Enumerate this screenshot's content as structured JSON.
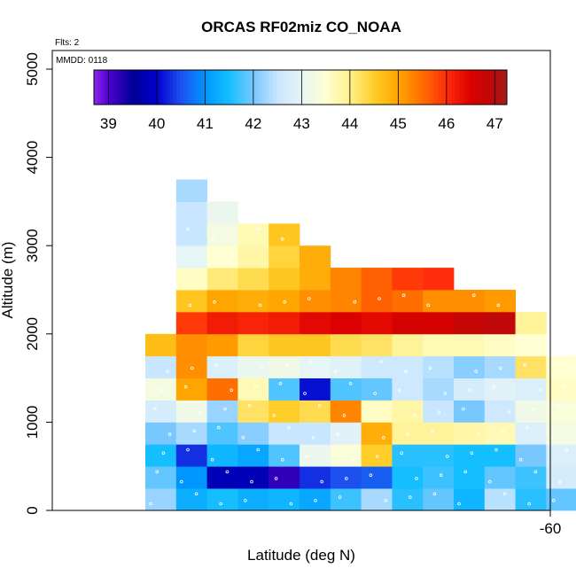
{
  "chart_data": {
    "type": "heatmap",
    "title": "ORCAS RF02miz CO_NOAA",
    "flights_label": "Flts: 2",
    "date_label": "MMDD: 0118",
    "xlabel": "Latitude (deg N)",
    "ylabel": "Altitude (m)",
    "x_tick_labels": [
      "-60"
    ],
    "y_ticks": [
      0,
      1000,
      2000,
      3000,
      4000,
      5000
    ],
    "y_tick_labels": [
      "0",
      "1000",
      "2000",
      "3000",
      "4000",
      "5000"
    ],
    "ylim": [
      0,
      5000
    ],
    "colorbar": {
      "range": [
        38.7,
        47.25
      ],
      "ticks": [
        39,
        40,
        41,
        42,
        43,
        44,
        45,
        46,
        47
      ],
      "tick_labels": [
        "39",
        "40",
        "41",
        "42",
        "43",
        "44",
        "45",
        "46",
        "47"
      ],
      "boundaries": [
        38.7,
        39,
        40,
        41,
        42,
        43,
        44,
        45,
        46,
        47,
        47.25
      ]
    },
    "cell_altitude_bin_m": 250,
    "columns": [
      {
        "altitudes_m": [
          0,
          250,
          500,
          750,
          1000,
          1250,
          1500,
          1750
        ],
        "values": [
          42.2,
          41.9,
          41.5,
          42.0,
          42.7,
          43.3,
          42.5,
          44.7
        ]
      },
      {
        "altitudes_m": [
          0,
          250,
          500,
          750,
          1000,
          1250,
          1500,
          1750,
          2000,
          2250,
          2500,
          2750,
          3000,
          3250,
          3500
        ],
        "values": [
          41.3,
          41.0,
          40.3,
          42.3,
          43.2,
          45.0,
          45.2,
          45.2,
          45.9,
          44.6,
          43.6,
          43.0,
          42.5,
          42.5,
          42.3
        ]
      },
      {
        "altitudes_m": [
          0,
          250,
          500,
          750,
          1000,
          1250,
          1500,
          1750,
          2000,
          2250,
          2500,
          2750,
          3000,
          3250
        ],
        "values": [
          41.5,
          39.8,
          41.4,
          41.8,
          42.2,
          45.5,
          42.8,
          45.1,
          46.2,
          45.0,
          44.1,
          43.5,
          43.3,
          43.1
        ]
      },
      {
        "altitudes_m": [
          0,
          250,
          500,
          750,
          1000,
          1250,
          1500,
          1750,
          2000,
          2250,
          2500,
          2750,
          3000
        ],
        "values": [
          41.3,
          39.8,
          41.2,
          42.1,
          44.2,
          43.7,
          43.1,
          44.4,
          46.1,
          44.9,
          44.3,
          43.8,
          43.7
        ]
      },
      {
        "altitudes_m": [
          0,
          250,
          500,
          750,
          1000,
          1250,
          1500,
          1750,
          2000,
          2250,
          2500,
          2750,
          3000
        ],
        "values": [
          41.4,
          39.2,
          41.8,
          42.5,
          44.5,
          41.8,
          43.2,
          44.6,
          46.2,
          45.0,
          44.6,
          44.4,
          44.6
        ]
      },
      {
        "altitudes_m": [
          0,
          250,
          500,
          750,
          1000,
          1250,
          1500,
          1750,
          2000,
          2250,
          2500,
          2750
        ],
        "values": [
          41.2,
          40.3,
          43.1,
          42.5,
          44.3,
          40.1,
          43.0,
          44.6,
          46.4,
          45.2,
          44.9,
          44.9
        ]
      },
      {
        "altitudes_m": [
          0,
          250,
          500,
          750,
          1000,
          1250,
          1500,
          1750,
          2000,
          2250,
          2500
        ],
        "values": [
          41.7,
          40.5,
          43.4,
          42.9,
          45.3,
          41.8,
          42.9,
          44.3,
          46.5,
          45.3,
          45.3
        ]
      },
      {
        "altitudes_m": [
          0,
          250,
          500,
          750,
          1000,
          1250,
          1500,
          1750,
          2000,
          2250,
          2500
        ],
        "values": [
          42.3,
          40.6,
          44.5,
          44.9,
          43.6,
          41.9,
          42.6,
          44.2,
          46.4,
          45.6,
          45.6
        ]
      },
      {
        "altitudes_m": [
          0,
          250,
          500,
          750,
          1000,
          1250,
          1500,
          1750,
          2000,
          2250,
          2500
        ],
        "values": [
          41.6,
          41.5,
          41.6,
          43.9,
          43.8,
          42.6,
          42.6,
          43.9,
          46.6,
          45.5,
          45.9
        ]
      },
      {
        "altitudes_m": [
          0,
          250,
          500,
          750,
          1000,
          1250,
          1500,
          1750,
          2000,
          2250,
          2500
        ],
        "values": [
          41.9,
          41.7,
          41.6,
          43.9,
          42.5,
          42.3,
          42.4,
          43.7,
          46.6,
          45.2,
          46.0
        ]
      },
      {
        "altitudes_m": [
          0,
          250,
          500,
          750,
          1000,
          1250,
          1500,
          1750,
          2000,
          2250
        ],
        "values": [
          41.4,
          41.5,
          41.5,
          43.8,
          42.0,
          42.7,
          42.1,
          43.7,
          46.8,
          45.2
        ]
      },
      {
        "altitudes_m": [
          0,
          250,
          500,
          750,
          1000,
          1250,
          1500,
          1750,
          2000,
          2250
        ],
        "values": [
          42.4,
          41.9,
          41.5,
          43.7,
          42.6,
          42.9,
          42.3,
          43.6,
          46.9,
          45.1
        ]
      },
      {
        "altitudes_m": [
          0,
          250,
          500,
          750,
          1000,
          1250,
          1500,
          1750,
          2000
        ],
        "values": [
          41.6,
          41.7,
          42.0,
          42.8,
          43.2,
          42.8,
          44.2,
          43.5,
          43.9
        ]
      },
      {
        "altitudes_m": [
          0,
          250,
          500,
          750,
          1000,
          1250,
          1500
        ],
        "values": [
          41.9,
          42.7,
          42.8,
          43.3,
          43.4,
          43.6,
          43.5
        ]
      }
    ]
  }
}
